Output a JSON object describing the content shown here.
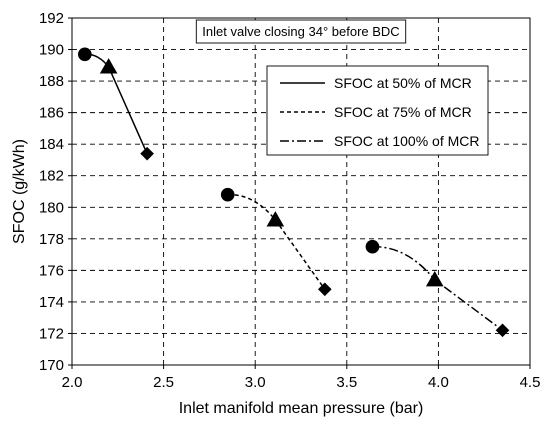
{
  "chart_data": {
    "type": "line",
    "title": "",
    "xlabel": "Inlet manifold mean pressure (bar)",
    "ylabel": "SFOC (g/kWh)",
    "xlim": [
      2.0,
      4.5
    ],
    "ylim": [
      170,
      192
    ],
    "xticks": [
      "2.0",
      "2.5",
      "3.0",
      "3.5",
      "4.0",
      "4.5"
    ],
    "yticks": [
      "170",
      "172",
      "174",
      "176",
      "178",
      "180",
      "182",
      "184",
      "186",
      "188",
      "190",
      "192"
    ],
    "grid": true,
    "legend_position": "top-right",
    "annotation": "Inlet valve closing 34° before BDC",
    "series": [
      {
        "name": "SFOC at 50% of MCR",
        "line_style": "solid",
        "points": [
          {
            "x": 2.07,
            "y": 189.7,
            "marker": "circle"
          },
          {
            "x": 2.2,
            "y": 188.9,
            "marker": "triangle"
          },
          {
            "x": 2.41,
            "y": 183.4,
            "marker": "diamond"
          }
        ]
      },
      {
        "name": "SFOC at 75% of MCR",
        "line_style": "dashed",
        "points": [
          {
            "x": 2.85,
            "y": 180.8,
            "marker": "circle"
          },
          {
            "x": 3.11,
            "y": 179.2,
            "marker": "triangle"
          },
          {
            "x": 3.38,
            "y": 174.8,
            "marker": "diamond"
          }
        ]
      },
      {
        "name": "SFOC at 100% of MCR",
        "line_style": "dashdot",
        "points": [
          {
            "x": 3.64,
            "y": 177.5,
            "marker": "circle"
          },
          {
            "x": 3.98,
            "y": 175.4,
            "marker": "triangle"
          },
          {
            "x": 4.35,
            "y": 172.2,
            "marker": "diamond"
          }
        ]
      }
    ]
  }
}
